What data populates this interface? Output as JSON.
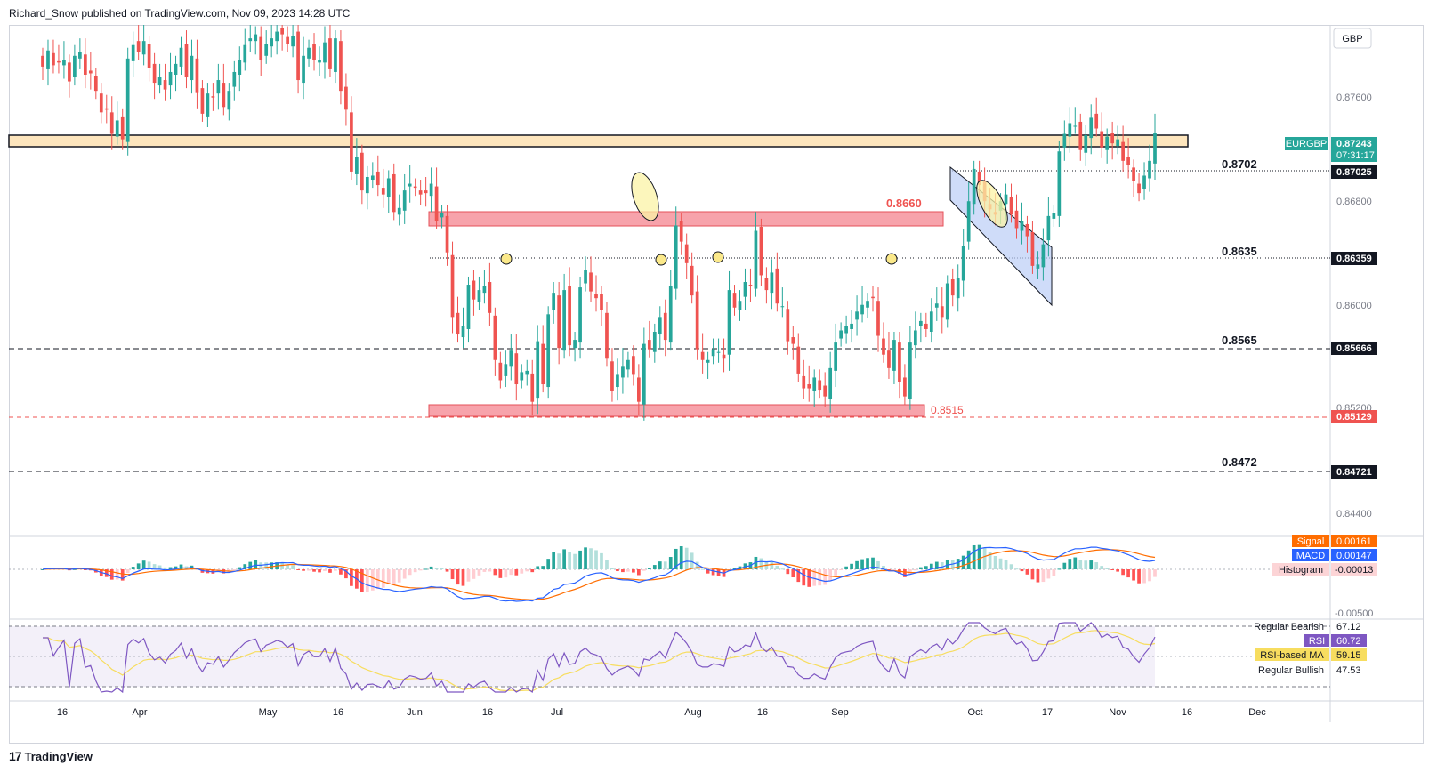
{
  "header": {
    "byline": "Richard_Snow published on TradingView.com, Nov 09, 2023 14:28 UTC"
  },
  "footer": {
    "logo_glyph": "17",
    "brand": "TradingView"
  },
  "price_scale": {
    "currency": "GBP",
    "ticks": [
      "0.87600",
      "0.86800",
      "0.86000",
      "0.85200",
      "0.84400"
    ],
    "symbol": "EURGBP",
    "last_price": "0.87243",
    "countdown": "07:31:17",
    "price_labels": [
      "0.87025",
      "0.86359",
      "0.85666",
      "0.85129",
      "0.84721"
    ]
  },
  "levels": {
    "l8702": "0.8702",
    "l8660": "0.8660",
    "l8635": "0.8635",
    "l8565": "0.8565",
    "l8515": "0.8515",
    "l8472": "0.8472"
  },
  "macd_panel": {
    "signal_label": "Signal",
    "signal_value": "0.00161",
    "macd_label": "MACD",
    "macd_value": "0.00147",
    "hist_label": "Histogram",
    "hist_value": "-0.00013",
    "axis_tick": "-0.00500"
  },
  "rsi_panel": {
    "bearish_label": "Regular Bearish",
    "bearish_value": "67.12",
    "rsi_label": "RSI",
    "rsi_value": "60.72",
    "ma_label": "RSI-based MA",
    "ma_value": "59.15",
    "bullish_label": "Regular Bullish",
    "bullish_value": "47.53"
  },
  "time_axis": [
    "16",
    "Apr",
    "May",
    "16",
    "Jun",
    "16",
    "Jul",
    "Aug",
    "16",
    "Sep",
    "Oct",
    "17",
    "Nov",
    "16",
    "Dec"
  ],
  "colors": {
    "up": "#26a69a",
    "down": "#ef5350",
    "macd": "#2962ff",
    "signal": "#ff6d00",
    "rsi": "#7e57c2",
    "rsi_ma": "#f7dd5f"
  },
  "chart_data": {
    "type": "candlestick",
    "symbol": "EURGBP",
    "currency": "GBP",
    "ylim": [
      0.8424,
      0.8804
    ],
    "last": 0.87243,
    "series": [
      {
        "name": "EURGBP",
        "values": [
          0.8773,
          0.8785,
          0.8774,
          0.8776,
          0.8778,
          0.8762,
          0.8781,
          0.8784,
          0.8767,
          0.8768,
          0.8755,
          0.8739,
          0.8741,
          0.8723,
          0.8733,
          0.8719,
          0.8779,
          0.8789,
          0.8784,
          0.8792,
          0.8772,
          0.8761,
          0.8765,
          0.8756,
          0.8769,
          0.8775,
          0.8787,
          0.8765,
          0.8781,
          0.8754,
          0.8738,
          0.8753,
          0.875,
          0.8763,
          0.8743,
          0.8755,
          0.8769,
          0.8778,
          0.8789,
          0.8794,
          0.8797,
          0.8778,
          0.879,
          0.8794,
          0.8799,
          0.8797,
          0.879,
          0.8796,
          0.8763,
          0.8781,
          0.8787,
          0.8778,
          0.8778,
          0.8791,
          0.8771,
          0.8794,
          0.8755,
          0.8741,
          0.8695,
          0.8706,
          0.8681,
          0.8691,
          0.8692,
          0.8685,
          0.8678,
          0.869,
          0.8665,
          0.8668,
          0.8681,
          0.8686,
          0.8683,
          0.8678,
          0.8679,
          0.8686,
          0.8658,
          0.8664,
          0.8635,
          0.8587,
          0.8574,
          0.858,
          0.8611,
          0.86,
          0.8607,
          0.861,
          0.859,
          0.8555,
          0.854,
          0.8552,
          0.8562,
          0.8537,
          0.8546,
          0.8547,
          0.8524,
          0.8569,
          0.8537,
          0.8589,
          0.8605,
          0.8564,
          0.8607,
          0.8566,
          0.857,
          0.8609,
          0.8622,
          0.8606,
          0.8601,
          0.8592,
          0.8556,
          0.8532,
          0.8544,
          0.855,
          0.8555,
          0.8544,
          0.8524,
          0.8567,
          0.8563,
          0.8576,
          0.8587,
          0.857,
          0.861,
          0.8655,
          0.8643,
          0.8627,
          0.8603,
          0.8563,
          0.8555,
          0.8555,
          0.8563,
          0.8561,
          0.8556,
          0.8607,
          0.8594,
          0.8599,
          0.8613,
          0.861,
          0.8651,
          0.8618,
          0.8607,
          0.862,
          0.8597,
          0.8595,
          0.8569,
          0.8567,
          0.8545,
          0.8534,
          0.8534,
          0.8542,
          0.8533,
          0.8528,
          0.8549,
          0.8568,
          0.8577,
          0.858,
          0.8582,
          0.8591,
          0.8596,
          0.8599,
          0.8601,
          0.8573,
          0.8559,
          0.8549,
          0.857,
          0.8539,
          0.8528,
          0.8568,
          0.8577,
          0.8584,
          0.8578,
          0.8591,
          0.8597,
          0.8587,
          0.8612,
          0.8603,
          0.8616,
          0.864,
          0.8673,
          0.8697,
          0.8685,
          0.8673,
          0.8667,
          0.8663,
          0.8673,
          0.8678,
          0.8663,
          0.8653,
          0.8658,
          0.8647,
          0.8625,
          0.8626,
          0.8641,
          0.8662,
          0.8664,
          0.871,
          0.8723,
          0.8731,
          0.8729,
          0.8711,
          0.8722,
          0.8735,
          0.8727,
          0.8713,
          0.8721,
          0.8716,
          0.8719,
          0.8703,
          0.87,
          0.8688,
          0.8679,
          0.8692,
          0.8703,
          0.8724
        ]
      }
    ]
  }
}
